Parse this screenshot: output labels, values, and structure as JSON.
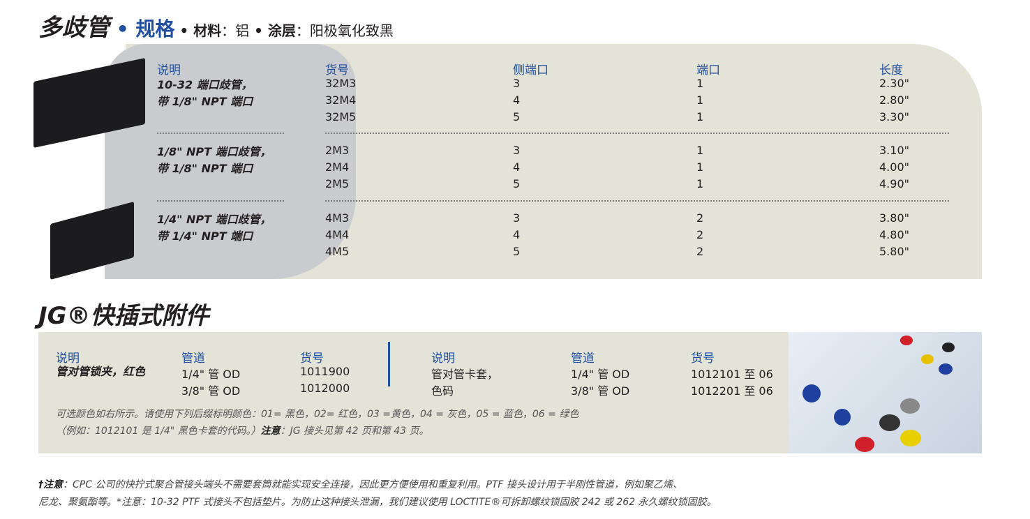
{
  "header": {
    "title": "多歧管",
    "spec": "规格",
    "material_label": "材料",
    "material": "铝",
    "coating_label": "涂层",
    "coating": "阳极氧化致黑"
  },
  "manifold_table": {
    "headers": {
      "description": "说明",
      "part": "货号",
      "side_ports": "侧端口",
      "ports": "端口",
      "length": "长度"
    },
    "groups": [
      {
        "desc": [
          "10-32 端口歧管，",
          "带 1/8\" NPT 端口"
        ],
        "rows": [
          [
            "32M3",
            "3",
            "1",
            "2.30\""
          ],
          [
            "32M4",
            "4",
            "1",
            "2.80\""
          ],
          [
            "32M5",
            "5",
            "1",
            "3.30\""
          ]
        ]
      },
      {
        "desc": [
          "1/8\" NPT 端口歧管，",
          "带 1/8\" NPT 端口"
        ],
        "rows": [
          [
            "2M3",
            "3",
            "1",
            "3.10\""
          ],
          [
            "2M4",
            "4",
            "1",
            "4.00\""
          ],
          [
            "2M5",
            "5",
            "1",
            "4.90\""
          ]
        ]
      },
      {
        "desc": [
          "1/4\" NPT 端口歧管，",
          "带 1/4\" NPT 端口"
        ],
        "rows": [
          [
            "4M3",
            "3",
            "2",
            "3.80\""
          ],
          [
            "4M4",
            "4",
            "2",
            "4.80\""
          ],
          [
            "4M5",
            "5",
            "2",
            "5.80\""
          ]
        ]
      }
    ]
  },
  "jg": {
    "title": "JG®快插式附件",
    "left": {
      "h_desc": "说明",
      "h_tube": "管道",
      "h_part": "货号",
      "desc": "管对管锁夹，红色",
      "tubes": [
        "1/4\" 管 OD",
        "3/8\" 管 OD"
      ],
      "parts": [
        "1011900",
        "1012000"
      ]
    },
    "right": {
      "h_desc": "说明",
      "h_tube": "管道",
      "h_part": "货号",
      "desc": [
        "管对管卡套，",
        "色码"
      ],
      "tubes": [
        "1/4\" 管 OD",
        "3/8\" 管 OD"
      ],
      "parts": [
        "1012101 至 06",
        "1012201 至 06"
      ]
    },
    "note1": "可选颜色如右所示。请使用下列后缀标明颜色：01= 黑色，02= 红色，03 =黄色，04 = 灰色，05 = 蓝色，06 = 绿色",
    "note2a": "（例如：1012101 是 1/4\" 黑色卡套的代码。）",
    "note2b": "注意",
    "note2c": "：JG 接头见第 42 页和第 43 页。"
  },
  "footer": {
    "l1a": "†注意",
    "l1b": "：CPC 公司的快拧式聚合管接头端头不需要套筒就能实现安全连接，因此更方便使用和重复利用。PTF 接头设计用于半刚性管道，例如聚乙烯、",
    "l2": "尼龙、聚氨酯等。*注意：10-32 PTF 式接头不包括垫片。为防止这种接头泄漏，我们建议使用 LOCTITE®可拆卸螺纹锁固胶 242 或 262 永久螺纹锁固胶。"
  }
}
